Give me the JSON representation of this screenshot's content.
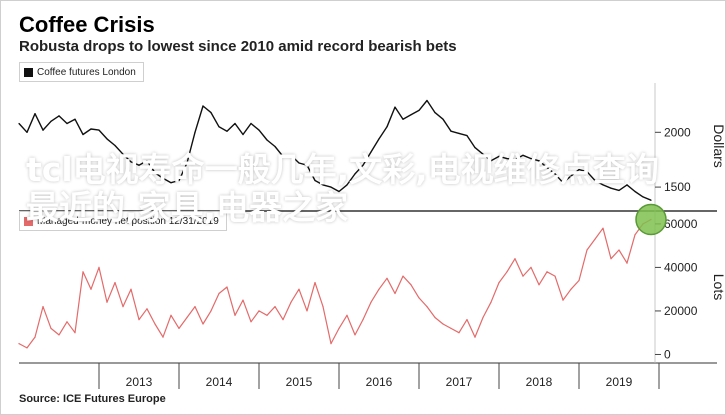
{
  "header": {
    "title": "Coffee Crisis",
    "subtitle": "Robusta drops to lowest since 2010 amid record bearish bets"
  },
  "legend": {
    "top_label": "Coffee futures London",
    "bottom_label": "Managed-money net position 12/31/2019"
  },
  "source": "Source: ICE Futures Europe",
  "overlay_text": "tcl电视寿命一般几年,文彩,电视维修点查询最近的,家具,电器之家",
  "colors": {
    "price_line": "#111111",
    "position_line": "#e46a6a",
    "highlight": "#7fbf4f"
  },
  "chart_data": {
    "type": "line",
    "x_tick_labels": [
      "2013",
      "2014",
      "2015",
      "2016",
      "2017",
      "2018",
      "2019"
    ],
    "panels": [
      {
        "name": "Coffee futures London",
        "ylabel": "Dollars",
        "yticks": [
          1500,
          2000
        ],
        "ylim": [
          1300,
          2450
        ],
        "series": [
          {
            "name": "Coffee futures London",
            "x": [
              2012.0,
              2012.1,
              2012.2,
              2012.3,
              2012.4,
              2012.5,
              2012.6,
              2012.7,
              2012.8,
              2012.9,
              2013.0,
              2013.1,
              2013.2,
              2013.3,
              2013.4,
              2013.5,
              2013.6,
              2013.7,
              2013.8,
              2013.9,
              2014.0,
              2014.1,
              2014.2,
              2014.3,
              2014.4,
              2014.5,
              2014.6,
              2014.7,
              2014.8,
              2014.9,
              2015.0,
              2015.1,
              2015.2,
              2015.3,
              2015.4,
              2015.5,
              2015.6,
              2015.7,
              2015.8,
              2015.9,
              2016.0,
              2016.1,
              2016.2,
              2016.3,
              2016.4,
              2016.5,
              2016.6,
              2016.7,
              2016.8,
              2016.9,
              2017.0,
              2017.1,
              2017.2,
              2017.3,
              2017.4,
              2017.5,
              2017.6,
              2017.7,
              2017.8,
              2017.9,
              2018.0,
              2018.1,
              2018.2,
              2018.3,
              2018.4,
              2018.5,
              2018.6,
              2018.7,
              2018.8,
              2018.9,
              2019.0,
              2019.1,
              2019.2,
              2019.3,
              2019.4,
              2019.5,
              2019.6,
              2019.7,
              2019.8,
              2019.9
            ],
            "values": [
              2080,
              2000,
              2170,
              2020,
              2100,
              2150,
              2080,
              2120,
              1980,
              2030,
              2020,
              1940,
              1880,
              1800,
              1730,
              1700,
              1740,
              1630,
              1580,
              1540,
              1560,
              1720,
              2000,
              2240,
              2180,
              2050,
              2010,
              2080,
              1980,
              2080,
              2020,
              1930,
              1870,
              1780,
              1790,
              1720,
              1700,
              1560,
              1520,
              1500,
              1460,
              1520,
              1620,
              1700,
              1820,
              1940,
              2050,
              2230,
              2120,
              2160,
              2200,
              2290,
              2180,
              2120,
              2010,
              1990,
              1970,
              1860,
              1800,
              1740,
              1780,
              1760,
              1750,
              1790,
              1760,
              1740,
              1680,
              1620,
              1540,
              1600,
              1660,
              1640,
              1560,
              1520,
              1490,
              1470,
              1520,
              1460,
              1410,
              1380
            ]
          }
        ]
      },
      {
        "name": "Managed-money net position",
        "ylabel": "Lots",
        "yticks": [
          0,
          20000,
          40000,
          60000
        ],
        "ylim": [
          -3000,
          65000
        ],
        "series": [
          {
            "name": "Managed-money net position",
            "x": [
              2012.0,
              2012.1,
              2012.2,
              2012.3,
              2012.4,
              2012.5,
              2012.6,
              2012.7,
              2012.8,
              2012.9,
              2013.0,
              2013.1,
              2013.2,
              2013.3,
              2013.4,
              2013.5,
              2013.6,
              2013.7,
              2013.8,
              2013.9,
              2014.0,
              2014.1,
              2014.2,
              2014.3,
              2014.4,
              2014.5,
              2014.6,
              2014.7,
              2014.8,
              2014.9,
              2015.0,
              2015.1,
              2015.2,
              2015.3,
              2015.4,
              2015.5,
              2015.6,
              2015.7,
              2015.8,
              2015.9,
              2016.0,
              2016.1,
              2016.2,
              2016.3,
              2016.4,
              2016.5,
              2016.6,
              2016.7,
              2016.8,
              2016.9,
              2017.0,
              2017.1,
              2017.2,
              2017.3,
              2017.4,
              2017.5,
              2017.6,
              2017.7,
              2017.8,
              2017.9,
              2018.0,
              2018.1,
              2018.2,
              2018.3,
              2018.4,
              2018.5,
              2018.6,
              2018.7,
              2018.8,
              2018.9,
              2019.0,
              2019.1,
              2019.2,
              2019.3,
              2019.4,
              2019.5,
              2019.6,
              2019.7,
              2019.8,
              2019.9
            ],
            "values": [
              5000,
              3000,
              8000,
              22000,
              12000,
              9000,
              15000,
              10000,
              38000,
              30000,
              40000,
              24000,
              33000,
              22000,
              30000,
              16000,
              21000,
              14000,
              8000,
              18000,
              12000,
              17000,
              22000,
              14000,
              20000,
              28000,
              31000,
              18000,
              25000,
              15000,
              20000,
              18000,
              22000,
              16000,
              24000,
              30000,
              20000,
              33000,
              22000,
              5000,
              12000,
              18000,
              9000,
              16000,
              24000,
              30000,
              35000,
              28000,
              36000,
              32000,
              26000,
              22000,
              17000,
              14000,
              12000,
              10000,
              16000,
              8000,
              17000,
              24000,
              33000,
              38000,
              44000,
              36000,
              40000,
              32000,
              38000,
              36000,
              25000,
              30000,
              34000,
              48000,
              53000,
              58000,
              44000,
              48000,
              42000,
              55000,
              60000,
              62000
            ]
          }
        ]
      }
    ]
  }
}
